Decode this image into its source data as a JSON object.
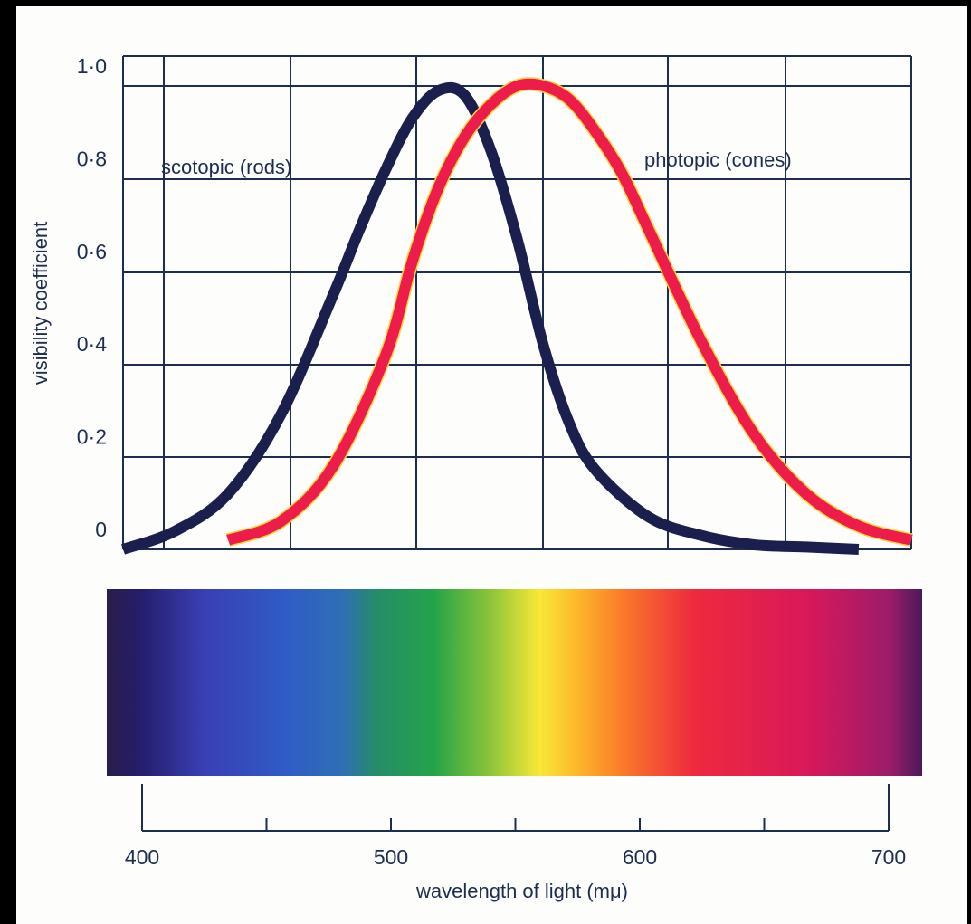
{
  "chart_data": {
    "type": "line",
    "ylabel": "visibility coefficient",
    "xlabel": "wavelength of light (mμ)",
    "y_ticks": [
      "0",
      "0·2",
      "0·4",
      "0·6",
      "0·8",
      "1·0"
    ],
    "x_ticks": [
      "400",
      "500",
      "600",
      "700"
    ],
    "xlim": [
      400,
      700
    ],
    "ylim": [
      0,
      1.0
    ],
    "grid": true,
    "series": [
      {
        "name": "scotopic (rods)",
        "color": "#1b1f4e",
        "x": [
          400,
          420,
          440,
          460,
          480,
          490,
          500,
          510,
          520,
          530,
          540,
          550,
          560,
          570,
          580,
          600,
          620,
          640,
          660,
          680
        ],
        "y": [
          0.0,
          0.04,
          0.12,
          0.29,
          0.55,
          0.69,
          0.82,
          0.93,
          0.99,
          0.98,
          0.86,
          0.67,
          0.44,
          0.27,
          0.17,
          0.07,
          0.03,
          0.01,
          0.005,
          0.0
        ]
      },
      {
        "name": "photopic (cones)",
        "color": "#ee1c4a",
        "x": [
          440,
          460,
          480,
          500,
          510,
          520,
          530,
          540,
          550,
          560,
          570,
          580,
          590,
          600,
          620,
          640,
          660,
          680,
          700
        ],
        "y": [
          0.02,
          0.06,
          0.18,
          0.42,
          0.62,
          0.78,
          0.89,
          0.96,
          1.0,
          1.0,
          0.97,
          0.9,
          0.81,
          0.69,
          0.45,
          0.25,
          0.12,
          0.05,
          0.02
        ]
      }
    ],
    "spectrum_axis": {
      "ticks": [
        400,
        450,
        500,
        550,
        600,
        650,
        700
      ],
      "labels": [
        "400",
        "500",
        "600",
        "700"
      ]
    }
  },
  "colors": {
    "grid": "#1c2d4f",
    "text": "#1c2d4f"
  }
}
